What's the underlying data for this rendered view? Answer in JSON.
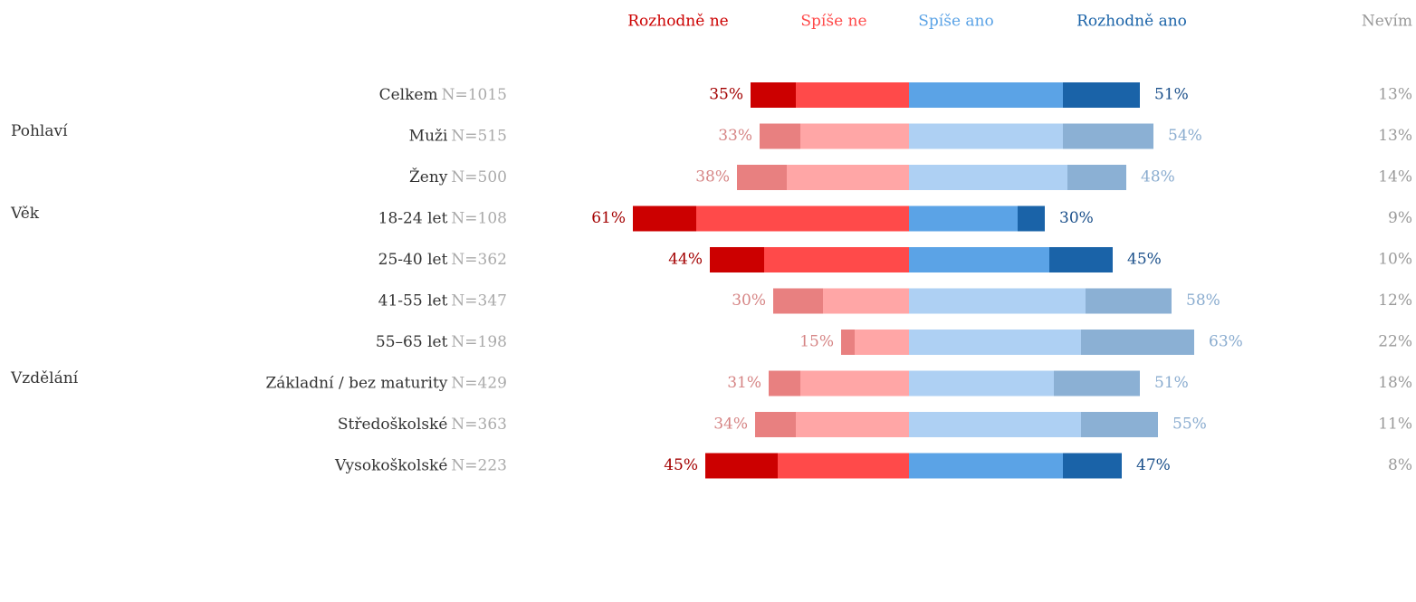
{
  "chart_data": {
    "type": "diverging_bar",
    "series": [
      {
        "name": "Rozhodně ne",
        "color": "#cc0000",
        "faded_color": "#e88080",
        "label_color": "#a30000",
        "faded_label_color": "#d68585"
      },
      {
        "name": "Spíše ne",
        "color": "#ff4a4a",
        "faded_color": "#ffa6a6",
        "label_color": "#ff4a4a",
        "faded_label_color": "#ffa6a6"
      },
      {
        "name": "Spíše ano",
        "color": "#5ba3e6",
        "faded_color": "#aed0f3",
        "label_color": "#5ba3e6",
        "faded_label_color": "#aed0f3"
      },
      {
        "name": "Rozhodně ano",
        "color": "#1a63a8",
        "faded_color": "#8bb0d4",
        "label_color": "#1a4f8a",
        "faded_label_color": "#8aaccf"
      }
    ],
    "nevim_header": "Nevím",
    "groups": [
      {
        "rows": [
          {
            "label": "Celkem",
            "n": "N=1015",
            "highlighted": true,
            "values": [
              10,
              25,
              34,
              17
            ],
            "totals": [
              35,
              51
            ],
            "total_labels": [
              "35%",
              "51%"
            ],
            "nevim": 13,
            "nevim_label": "13%"
          }
        ]
      },
      {
        "name": "Pohlaví",
        "rows": [
          {
            "label": "Muži",
            "n": "N=515",
            "highlighted": false,
            "values": [
              9,
              24,
              34,
              20
            ],
            "totals": [
              33,
              54
            ],
            "total_labels": [
              "33%",
              "54%"
            ],
            "nevim": 13,
            "nevim_label": "13%"
          },
          {
            "label": "Ženy",
            "n": "N=500",
            "highlighted": false,
            "values": [
              11,
              27,
              35,
              13
            ],
            "totals": [
              38,
              48
            ],
            "total_labels": [
              "38%",
              "48%"
            ],
            "nevim": 14,
            "nevim_label": "14%"
          }
        ]
      },
      {
        "name": "Věk",
        "rows": [
          {
            "label": "18-24 let",
            "n": "N=108",
            "highlighted": true,
            "values": [
              14,
              47,
              24,
              6
            ],
            "totals": [
              61,
              30
            ],
            "total_labels": [
              "61%",
              "30%"
            ],
            "nevim": 9,
            "nevim_label": "9%"
          },
          {
            "label": "25-40 let",
            "n": "N=362",
            "highlighted": true,
            "values": [
              12,
              32,
              31,
              14
            ],
            "totals": [
              44,
              45
            ],
            "total_labels": [
              "44%",
              "45%"
            ],
            "nevim": 10,
            "nevim_label": "10%"
          },
          {
            "label": "41-55 let",
            "n": "N=347",
            "highlighted": false,
            "values": [
              11,
              19,
              39,
              19
            ],
            "totals": [
              30,
              58
            ],
            "total_labels": [
              "30%",
              "58%"
            ],
            "nevim": 12,
            "nevim_label": "12%"
          },
          {
            "label": "55–65 let",
            "n": "N=198",
            "highlighted": false,
            "values": [
              3,
              12,
              38,
              25
            ],
            "totals": [
              15,
              63
            ],
            "total_labels": [
              "15%",
              "63%"
            ],
            "nevim": 22,
            "nevim_label": "22%"
          }
        ]
      },
      {
        "name": "Vzdělání",
        "rows": [
          {
            "label": "Základní / bez maturity",
            "n": "N=429",
            "highlighted": false,
            "values": [
              7,
              24,
              32,
              19
            ],
            "totals": [
              31,
              51
            ],
            "total_labels": [
              "31%",
              "51%"
            ],
            "nevim": 18,
            "nevim_label": "18%"
          },
          {
            "label": "Středoškolské",
            "n": "N=363",
            "highlighted": false,
            "values": [
              9,
              25,
              38,
              17
            ],
            "totals": [
              34,
              55
            ],
            "total_labels": [
              "34%",
              "55%"
            ],
            "nevim": 11,
            "nevim_label": "11%"
          },
          {
            "label": "Vysokoškolské",
            "n": "N=223",
            "highlighted": true,
            "values": [
              16,
              29,
              34,
              13
            ],
            "totals": [
              45,
              47
            ],
            "total_labels": [
              "45%",
              "47%"
            ],
            "nevim": 8,
            "nevim_label": "8%"
          }
        ]
      }
    ]
  }
}
